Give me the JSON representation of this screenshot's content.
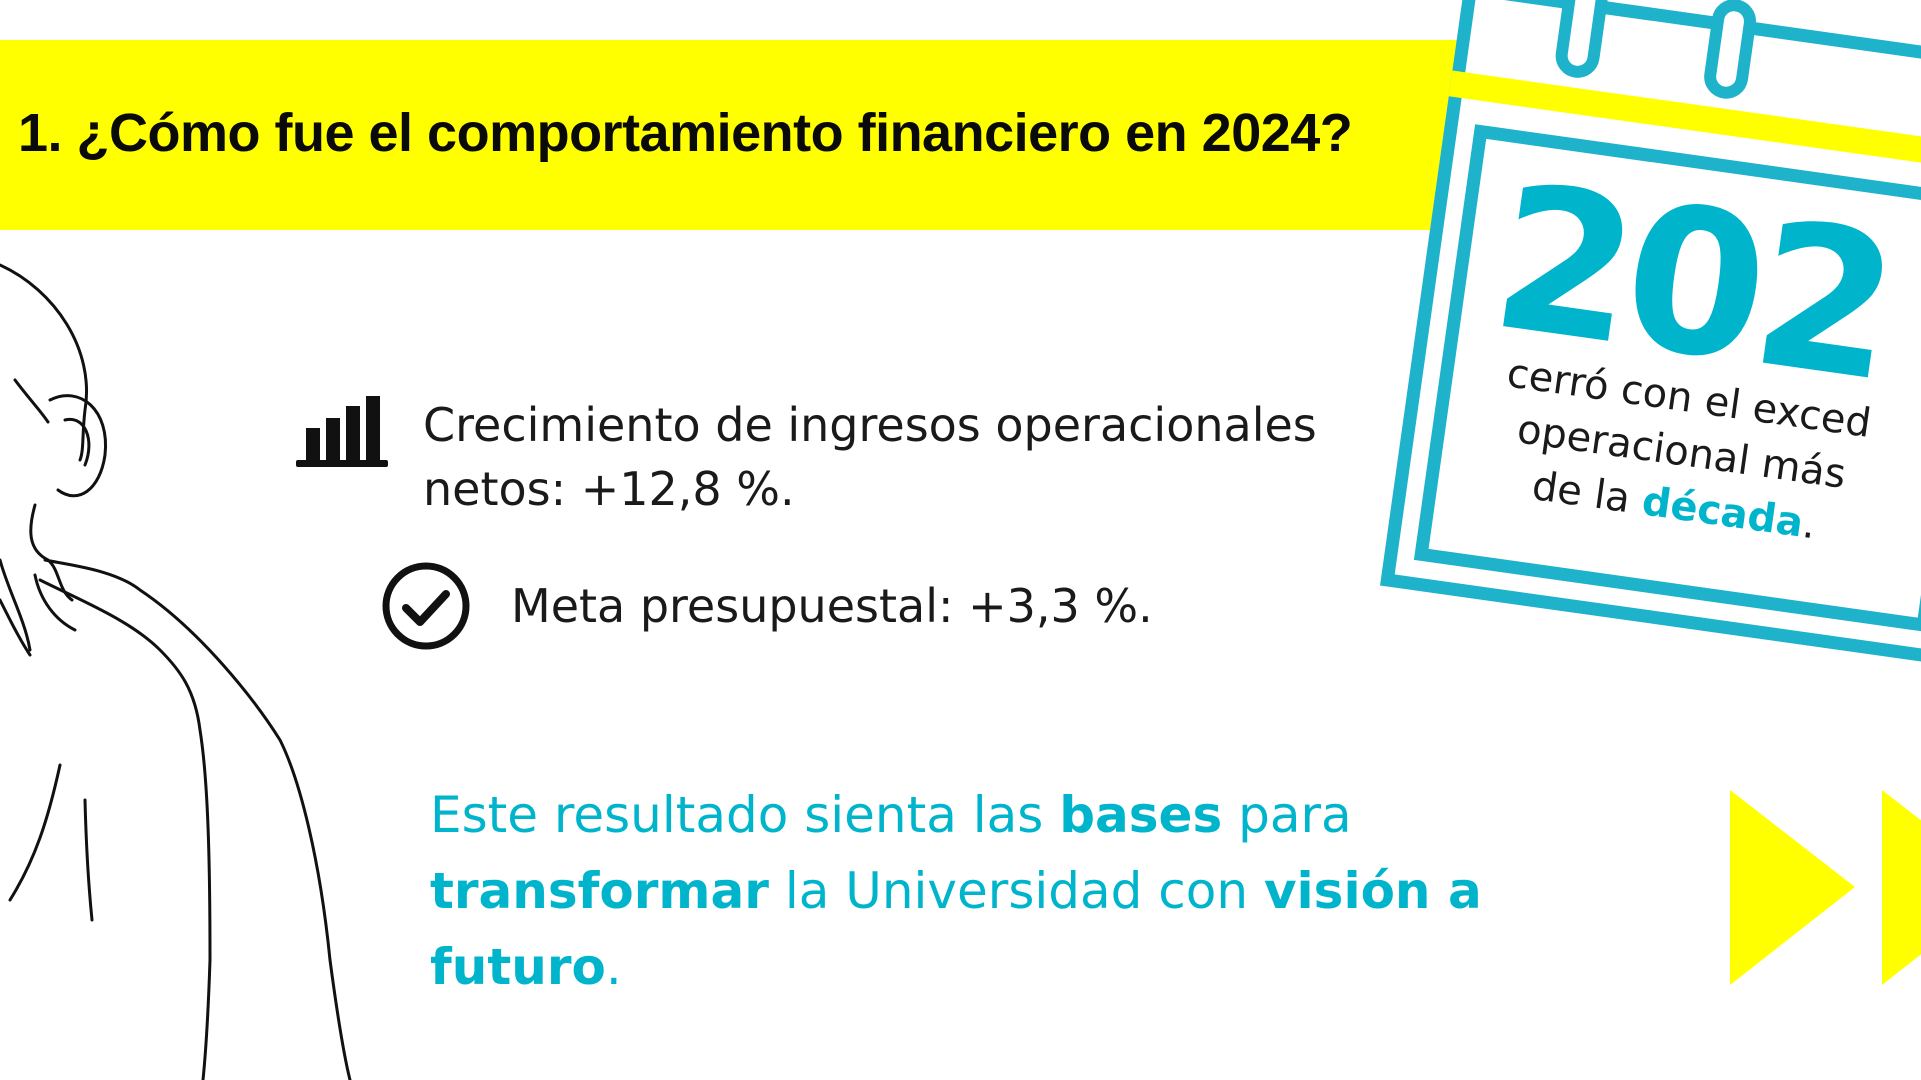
{
  "banner": {
    "title": "1. ¿Cómo fue el comportamiento financiero en 2024?"
  },
  "items": [
    {
      "text": "Crecimiento de ingresos operacionales netos: +12,8 %.",
      "icon": "bar-chart-icon"
    },
    {
      "text": "Meta presupuestal: +3,3 %.",
      "icon": "check-circle-icon"
    }
  ],
  "tagline": {
    "parts": [
      "Este resultado sienta las ",
      "bases",
      " para ",
      "transformar",
      " la Universidad con ",
      "visión a futuro",
      "."
    ]
  },
  "calendar": {
    "year": "202",
    "line1": "cerró con el exced",
    "line2": "operacional más",
    "line3_prefix": "de la ",
    "line3_highlight": "década",
    "line3_suffix": "."
  },
  "colors": {
    "accent": "#00b4cc",
    "banner": "#ffff00",
    "text": "#1a1a1a"
  }
}
